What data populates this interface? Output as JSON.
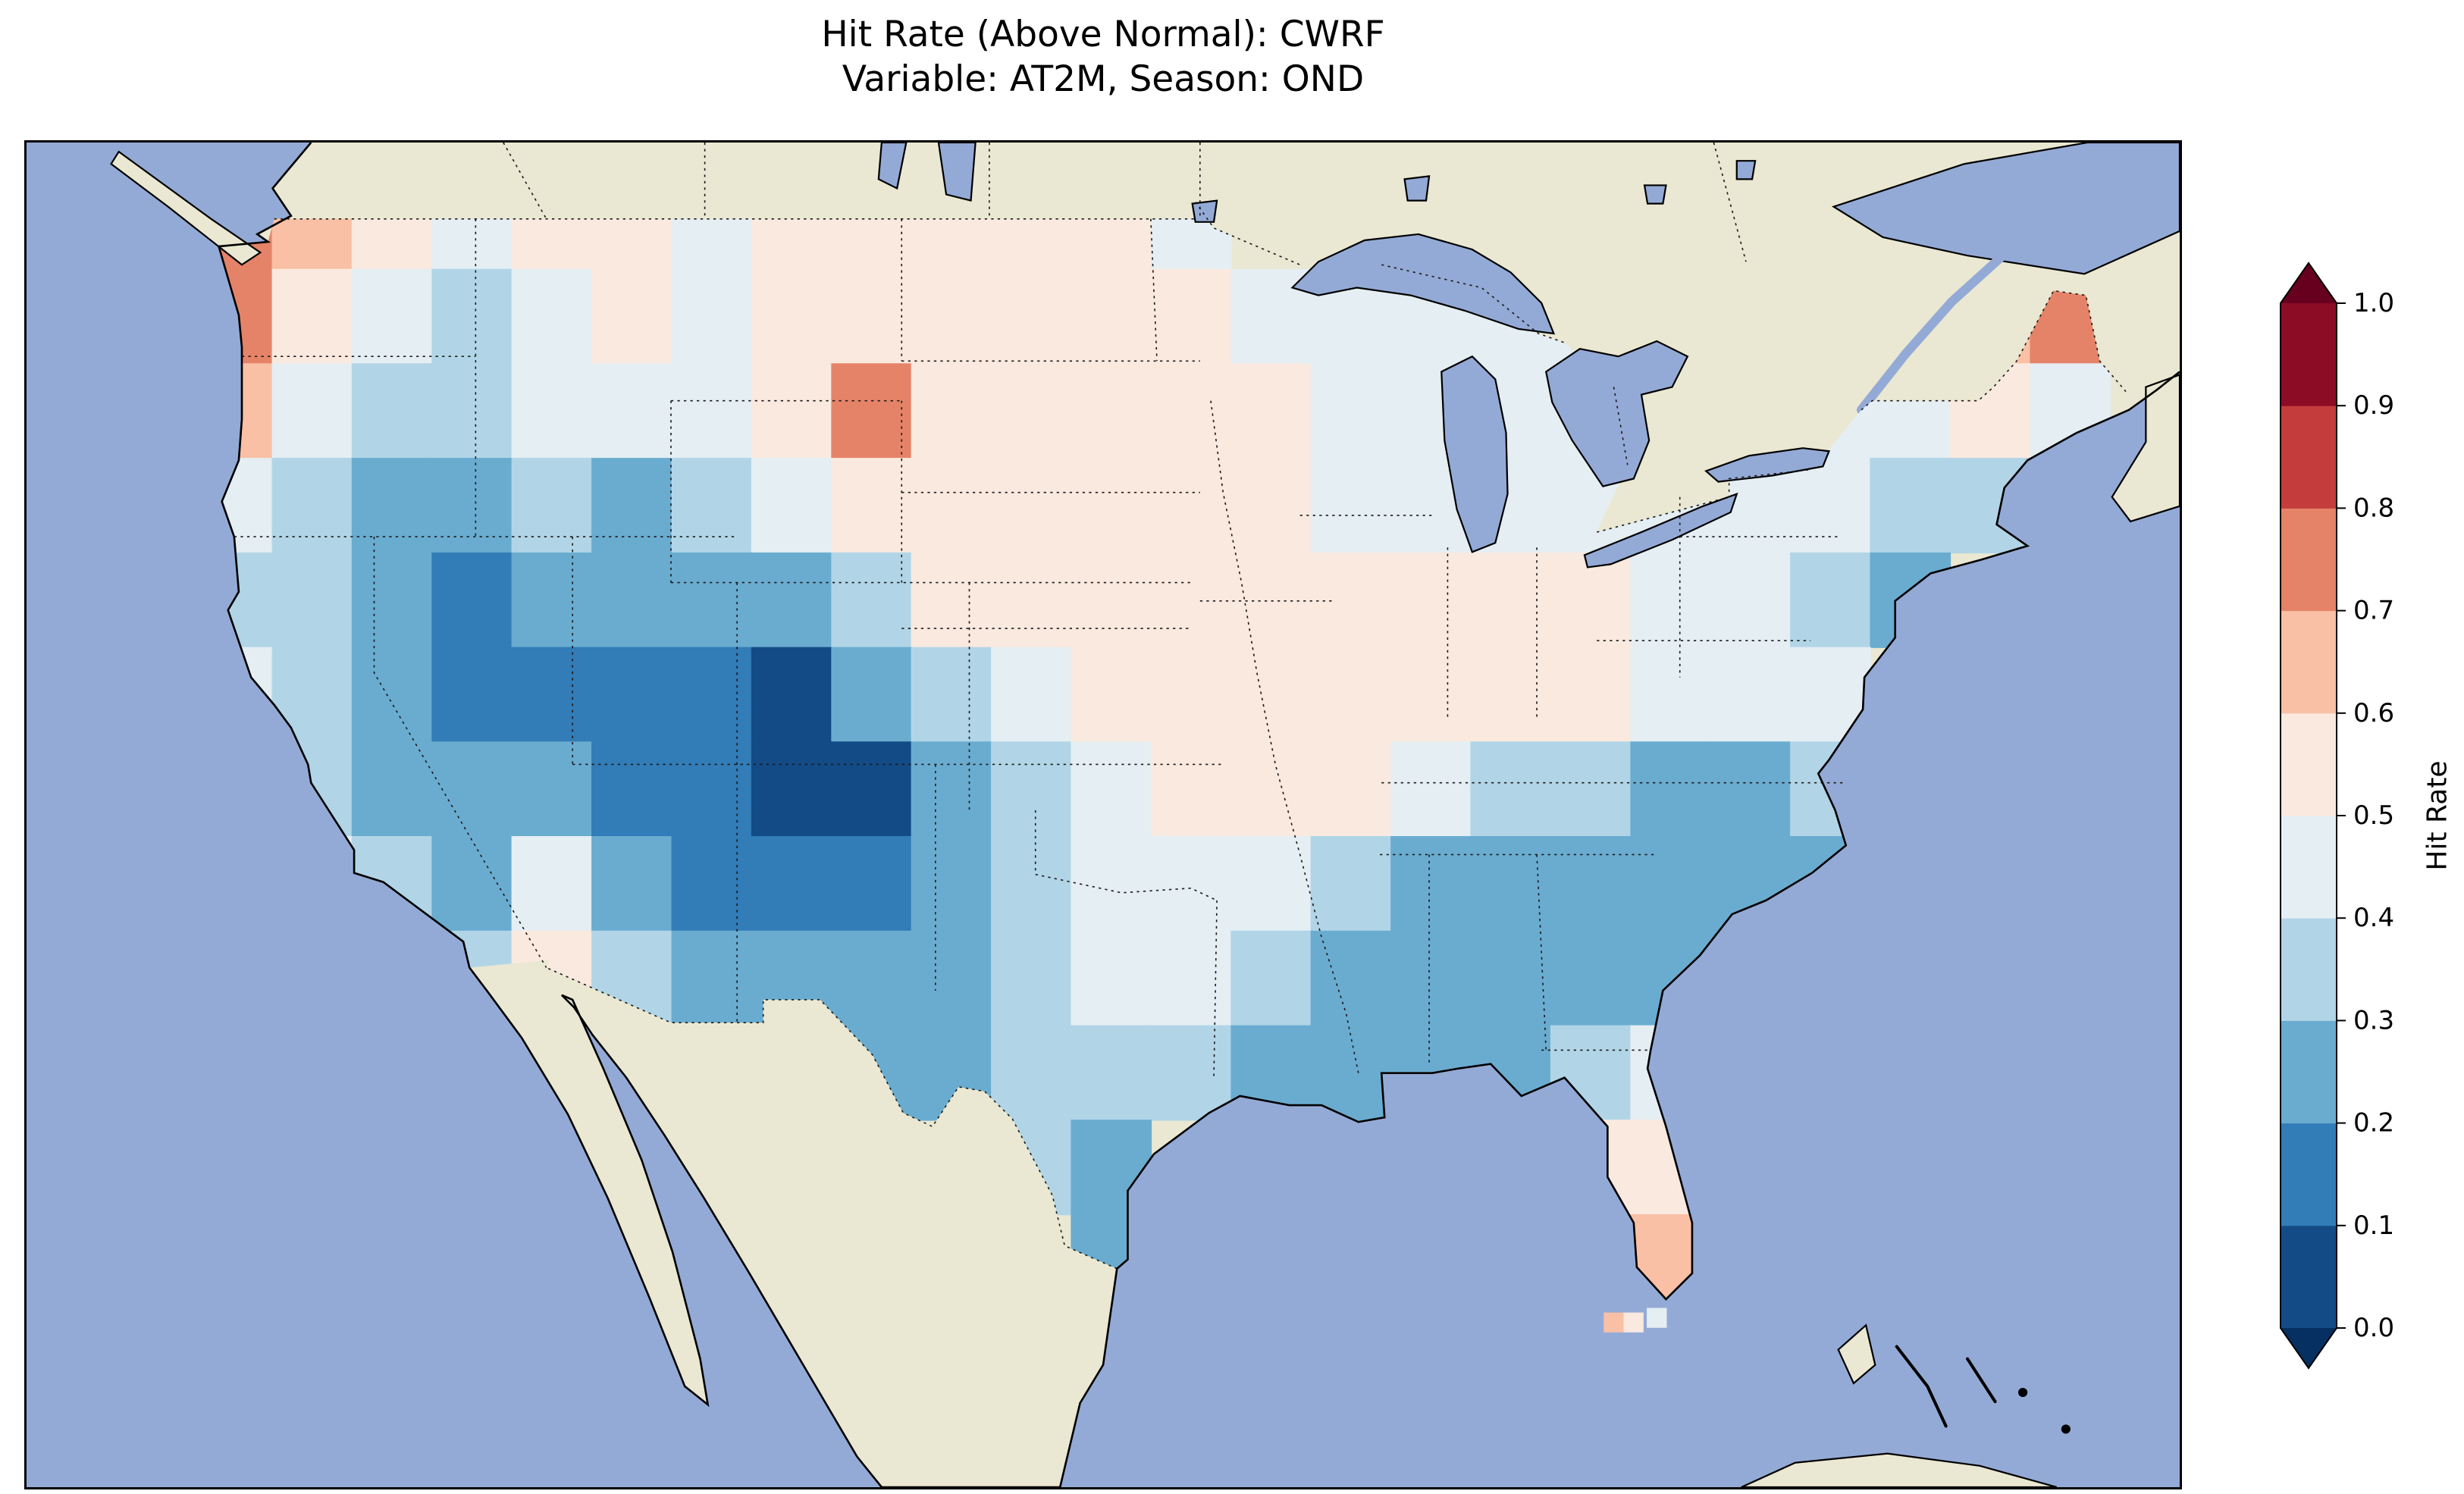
{
  "title": {
    "line1": "Hit Rate (Above Normal): CWRF",
    "line2": "Variable: AT2M, Season: OND"
  },
  "map": {
    "ocean_color": "#94aad6",
    "land_color": "#eae8d2",
    "lake_color": "#94aad6"
  },
  "colorbar": {
    "label": "Hit Rate",
    "ticks": [
      "1.0",
      "0.9",
      "0.8",
      "0.7",
      "0.6",
      "0.5",
      "0.4",
      "0.3",
      "0.2",
      "0.1",
      "0.0"
    ],
    "over_color": "#67001f",
    "under_color": "#053061",
    "bin_colors_low_to_high": [
      "#134b87",
      "#327cb7",
      "#6aacd0",
      "#b1d5e7",
      "#e4eef3",
      "#fae9df",
      "#f9c0a5",
      "#e58368",
      "#c43c3c",
      "#8d0c25"
    ]
  },
  "chart_data": {
    "type": "heatmap",
    "title": "Hit Rate (Above Normal): CWRF",
    "subtitle": "Variable: AT2M, Season: OND",
    "metric": "Hit Rate (Above Normal)",
    "model": "CWRF",
    "variable": "AT2M",
    "season": "OND",
    "colormap": "RdBu_r",
    "value_range": [
      0.0,
      1.0
    ],
    "colorbar_label": "Hit Rate",
    "colorbar_ticks": [
      0.0,
      0.1,
      0.2,
      0.3,
      0.4,
      0.5,
      0.6,
      0.7,
      0.8,
      0.9,
      1.0
    ],
    "projection": "PlateCarree, CONUS with surrounding ocean, Canada and Mexico",
    "grid": {
      "note": "Approximate downsampled hit-rate field over CONUS read from the figure; rows north to south, cols west to east; null = outside data region",
      "lon_start": -125.5,
      "lon_step": 2.4167,
      "lat_start": 50.0,
      "lat_step": -2.0833,
      "values": [
        [
          0.75,
          0.65,
          0.55,
          0.45,
          0.55,
          0.55,
          0.45,
          0.55,
          0.55,
          0.55,
          0.55,
          0.55,
          0.45,
          null,
          null,
          null,
          null,
          null,
          null,
          null,
          null,
          null,
          null,
          null
        ],
        [
          0.75,
          0.55,
          0.45,
          0.35,
          0.45,
          0.55,
          0.45,
          0.55,
          0.55,
          0.55,
          0.55,
          0.55,
          0.55,
          0.45,
          0.45,
          0.45,
          0.45,
          0.45,
          null,
          null,
          null,
          0.45,
          0.65,
          0.75
        ],
        [
          0.65,
          0.45,
          0.35,
          0.35,
          0.45,
          0.45,
          0.45,
          0.55,
          0.75,
          0.55,
          0.55,
          0.55,
          0.55,
          0.55,
          0.45,
          0.45,
          0.45,
          0.45,
          null,
          0.45,
          0.45,
          0.45,
          0.55,
          0.45
        ],
        [
          0.45,
          0.35,
          0.25,
          0.25,
          0.35,
          0.25,
          0.35,
          0.45,
          0.55,
          0.55,
          0.55,
          0.55,
          0.55,
          0.55,
          0.45,
          0.45,
          0.45,
          0.45,
          0.45,
          0.45,
          0.45,
          0.35,
          0.35,
          null
        ],
        [
          0.35,
          0.35,
          0.25,
          0.15,
          0.25,
          0.25,
          0.25,
          0.25,
          0.35,
          0.55,
          0.55,
          0.55,
          0.55,
          0.55,
          0.55,
          0.55,
          0.55,
          0.55,
          0.45,
          0.45,
          0.35,
          0.25,
          null,
          null
        ],
        [
          0.45,
          0.35,
          0.25,
          0.15,
          0.15,
          0.15,
          0.15,
          0.05,
          0.25,
          0.35,
          0.45,
          0.55,
          0.55,
          0.55,
          0.55,
          0.55,
          0.55,
          0.55,
          0.45,
          0.45,
          0.45,
          null,
          null,
          null
        ],
        [
          0.45,
          0.35,
          0.25,
          0.25,
          0.25,
          0.15,
          0.15,
          0.05,
          0.05,
          0.25,
          0.35,
          0.45,
          0.55,
          0.55,
          0.55,
          0.45,
          0.35,
          0.35,
          0.25,
          0.25,
          0.35,
          null,
          null,
          null
        ],
        [
          null,
          0.45,
          0.35,
          0.25,
          0.45,
          0.25,
          0.15,
          0.15,
          0.15,
          0.25,
          0.35,
          0.45,
          0.45,
          0.45,
          0.35,
          0.25,
          0.25,
          0.25,
          0.25,
          0.25,
          0.25,
          null,
          null,
          null
        ],
        [
          null,
          null,
          null,
          0.35,
          0.55,
          0.35,
          0.25,
          0.25,
          0.25,
          0.25,
          0.35,
          0.45,
          0.45,
          0.35,
          0.25,
          0.25,
          0.25,
          0.25,
          0.25,
          0.25,
          null,
          null,
          null,
          null
        ],
        [
          null,
          null,
          null,
          null,
          null,
          null,
          null,
          0.25,
          0.25,
          0.25,
          0.35,
          0.35,
          0.35,
          0.25,
          0.25,
          0.25,
          0.25,
          0.35,
          0.45,
          null,
          null,
          null,
          null,
          null
        ],
        [
          null,
          null,
          null,
          null,
          null,
          null,
          null,
          null,
          null,
          null,
          0.35,
          0.25,
          null,
          null,
          null,
          null,
          null,
          0.55,
          0.55,
          null,
          null,
          null,
          null,
          null
        ],
        [
          null,
          null,
          null,
          null,
          null,
          null,
          null,
          null,
          null,
          null,
          null,
          0.25,
          null,
          null,
          null,
          null,
          null,
          0.55,
          0.65,
          null,
          null,
          null,
          null,
          null
        ]
      ]
    },
    "extra_cells": [
      {
        "lon": -82.5,
        "lat": 24.7,
        "value": 0.65
      },
      {
        "lon": -81.9,
        "lat": 24.7,
        "value": 0.55
      },
      {
        "lon": -81.2,
        "lat": 24.8,
        "value": 0.45
      }
    ],
    "regions_summary": [
      {
        "region": "Pacific Northwest coast (NW Washington / N Oregon coast)",
        "hit_rate": "0.6-0.8"
      },
      {
        "region": "Interior Northwest and northern Rockies",
        "hit_rate": "0.4-0.5"
      },
      {
        "region": "Great Basin (Nevada / Utah)",
        "hit_rate": "0.1-0.3"
      },
      {
        "region": "Four Corners and northern New Mexico (field minimum)",
        "hit_rate": "0.0-0.1"
      },
      {
        "region": "Southwest Arizona (local pale-pink patch)",
        "hit_rate": "0.5-0.6"
      },
      {
        "region": "NE Wyoming / SE Montana hotspot",
        "hit_rate": "0.7-0.8"
      },
      {
        "region": "Northern and central Great Plains",
        "hit_rate": "0.5-0.6"
      },
      {
        "region": "Midwest and Ohio Valley",
        "hit_rate": "0.5-0.6"
      },
      {
        "region": "Great Lakes fringe",
        "hit_rate": "0.4-0.5"
      },
      {
        "region": "Southeast (Gulf states through the Carolinas)",
        "hit_rate": "0.2-0.3"
      },
      {
        "region": "Texas (central / east)",
        "hit_rate": "0.3-0.5"
      },
      {
        "region": "Florida peninsula",
        "hit_rate": "0.5-0.6"
      },
      {
        "region": "Southwest Florida",
        "hit_rate": "0.6-0.7"
      },
      {
        "region": "Maine hotspot",
        "hit_rate": "0.7-0.8"
      },
      {
        "region": "Southern New England coast",
        "hit_rate": "0.3-0.4"
      }
    ]
  }
}
